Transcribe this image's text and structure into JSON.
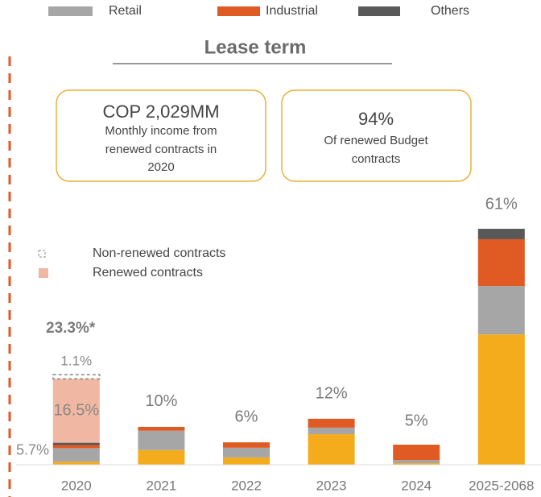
{
  "chart_data": {
    "type": "stacked_bar",
    "title": "Lease term",
    "categories": [
      "2020",
      "2021",
      "2022",
      "2023",
      "2024",
      "2025-2068"
    ],
    "series": [
      {
        "color": "#f4ac1c",
        "values": [
          0.8,
          3.8,
          1.9,
          7.9,
          0.4,
          33.7
        ]
      },
      {
        "name": "Retail",
        "color": "#a6a6a6",
        "values": [
          3.5,
          5.0,
          2.5,
          1.7,
          0.8,
          12.5
        ]
      },
      {
        "name": "Industrial",
        "color": "#e05a24",
        "values": [
          0.8,
          1.0,
          1.4,
          2.3,
          4.0,
          12.1
        ]
      },
      {
        "name": "Others",
        "color": "#595959",
        "values": [
          0.6,
          0,
          0,
          0,
          0,
          2.7
        ]
      },
      {
        "name": "Renewed contracts",
        "color": "#f0b8a2",
        "values": [
          16.5,
          null,
          null,
          null,
          null,
          null
        ],
        "value_labels": [
          "16.5%",
          null,
          null,
          null,
          null,
          null
        ]
      },
      {
        "name": "Non-renewed contracts",
        "color": "#888888",
        "dashed": true,
        "values": [
          1.1,
          null,
          null,
          null,
          null,
          null
        ],
        "value_labels": [
          "1.1%",
          null,
          null,
          null,
          null,
          null
        ]
      }
    ],
    "totals": {
      "values": [
        23.3,
        10,
        6,
        12,
        5,
        61
      ],
      "value_labels": [
        "23.3%*",
        "10%",
        "6%",
        "12%",
        "5%",
        "61%"
      ]
    },
    "annotations": [
      {
        "text": "5.7%",
        "value": 5.7
      }
    ],
    "ylim": [
      0,
      61
    ]
  },
  "info_boxes": [
    {
      "headline": "COP 2,029MM",
      "lines": [
        "Monthly income from",
        "renewed contracts in",
        "2020"
      ]
    },
    {
      "headline": "94%",
      "lines": [
        "Of renewed Budget",
        "contracts"
      ]
    }
  ]
}
